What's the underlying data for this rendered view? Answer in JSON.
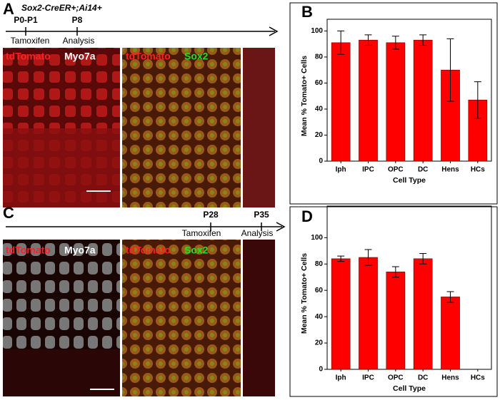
{
  "panels": {
    "a": "A",
    "b": "B",
    "c": "C",
    "d": "D"
  },
  "timeline_a": {
    "genotype": "Sox2-CreER+;Ai14+",
    "ticks": [
      {
        "label": "P0-P1",
        "event": "Tamoxifen"
      },
      {
        "label": "P8",
        "event": "Analysis"
      }
    ]
  },
  "timeline_c": {
    "ticks": [
      {
        "label": "P28",
        "event": "Tamoxifen"
      },
      {
        "label": "P35",
        "event": "Analysis"
      }
    ]
  },
  "images_a": [
    {
      "labels": [
        "tdTomato",
        "Myo7a"
      ]
    },
    {
      "labels": [
        "tdTomato",
        "Sox2"
      ]
    }
  ],
  "images_c": [
    {
      "labels": [
        "tdTomato",
        "Myo7a"
      ]
    },
    {
      "labels": [
        "tdTomato",
        "Sox2"
      ]
    }
  ],
  "chart_data": [
    {
      "type": "bar",
      "y_label": "Mean % Tomato+ Cells",
      "x_label": "Cell Type",
      "categories": [
        "Iph",
        "IPC",
        "OPC",
        "DC",
        "Hens",
        "HCs"
      ],
      "values": [
        91,
        93,
        91,
        93,
        70,
        47
      ],
      "errors": [
        9,
        4,
        5,
        4,
        24,
        14
      ],
      "color": "#ff0000",
      "ylim": [
        0,
        109
      ],
      "yticks": [
        0,
        20,
        40,
        60,
        80,
        100
      ]
    },
    {
      "type": "bar",
      "y_label": "Mean % Tomato+ Cells",
      "x_label": "Cell Type",
      "categories": [
        "Iph",
        "IPC",
        "OPC",
        "DC",
        "Hens",
        "HCs"
      ],
      "values": [
        84,
        85,
        74,
        84,
        55,
        0
      ],
      "errors": [
        2,
        6,
        4,
        4,
        4,
        0
      ],
      "color": "#ff0000",
      "ylim": [
        0,
        124
      ],
      "yticks": [
        0,
        20,
        40,
        60,
        80,
        100
      ]
    }
  ]
}
